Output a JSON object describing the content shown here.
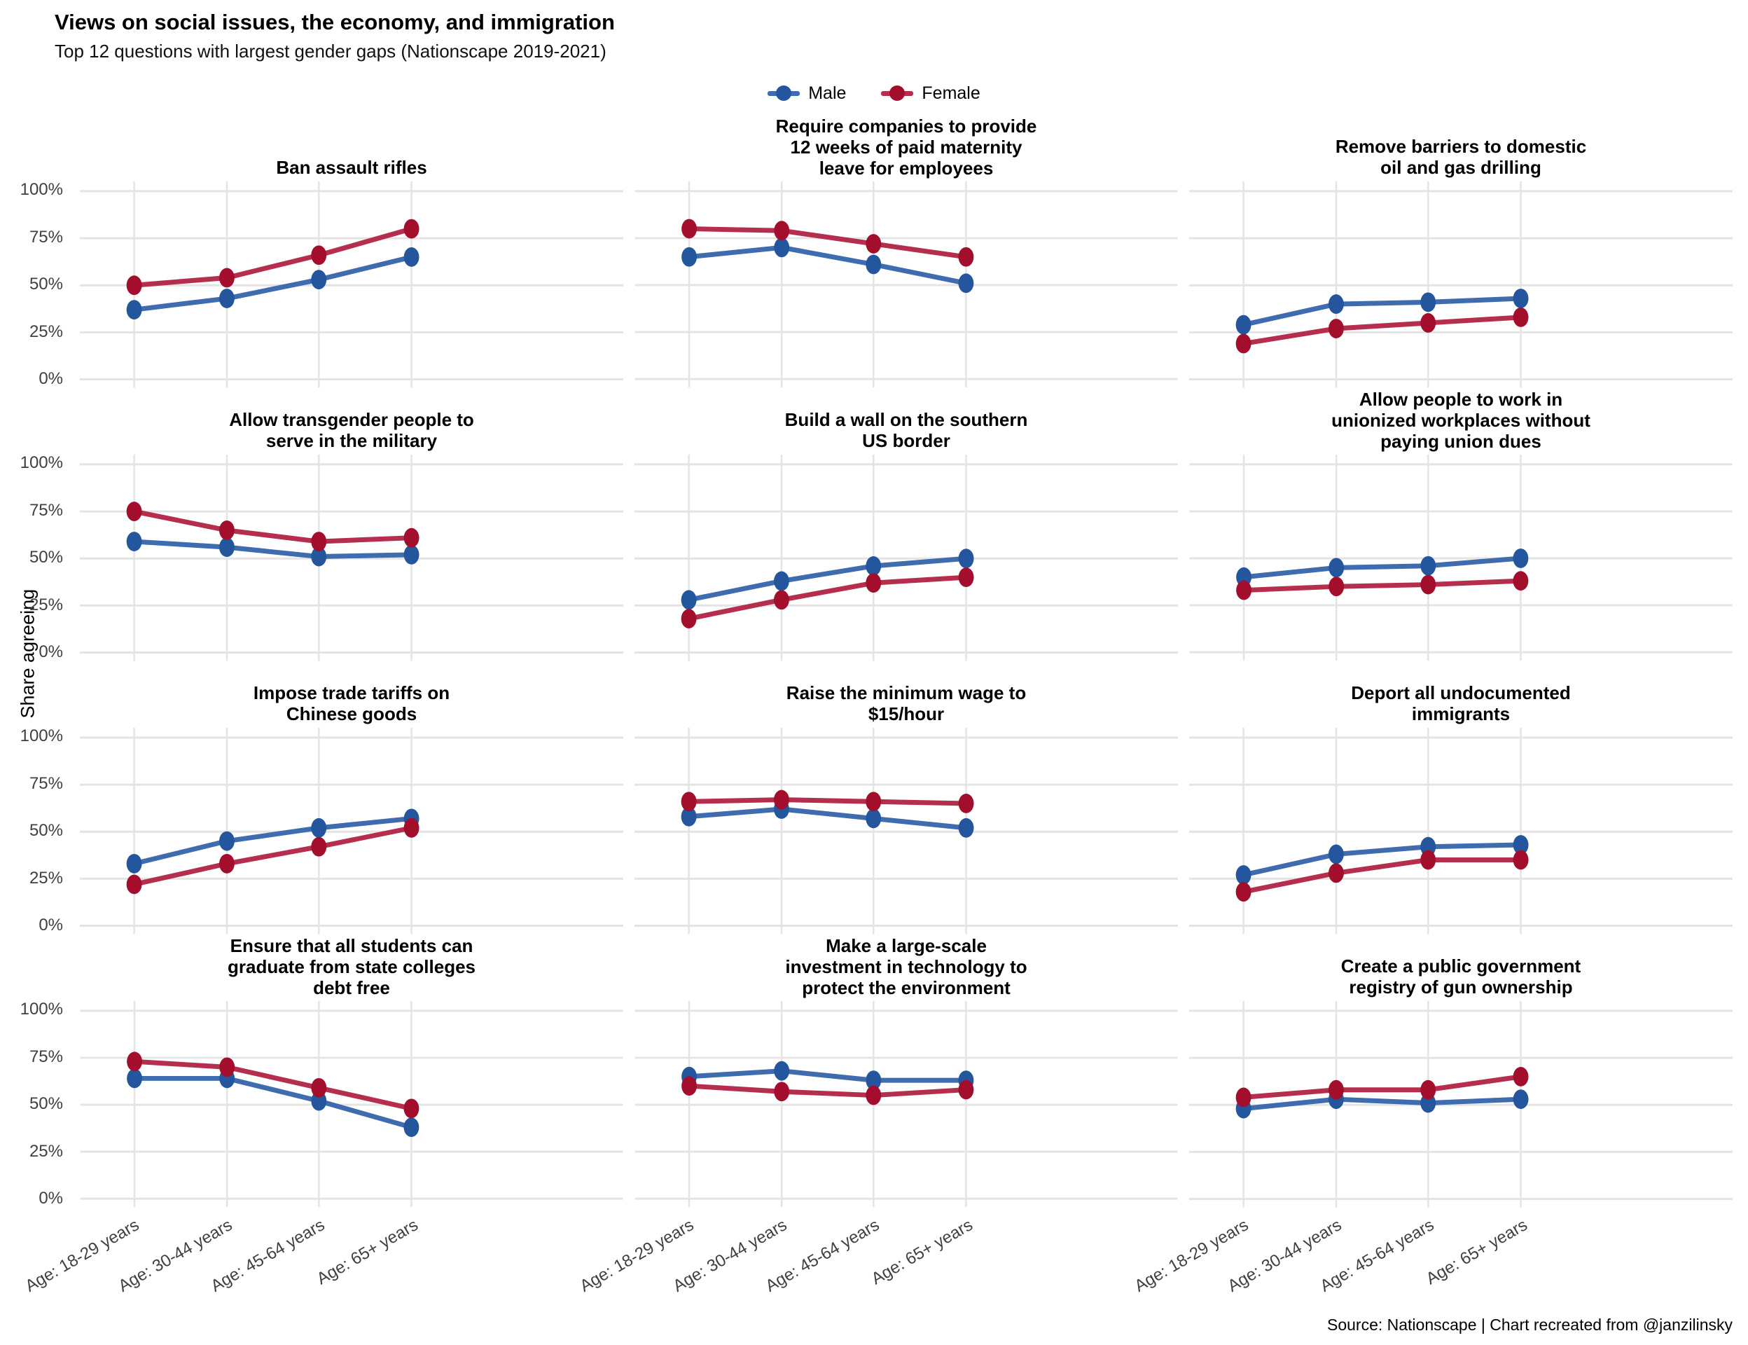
{
  "header": {
    "title": "Views on social issues, the economy, and immigration",
    "subtitle": "Top 12 questions with largest gender gaps (Nationscape 2019-2021)"
  },
  "legend": {
    "items": [
      {
        "label": "Male"
      },
      {
        "label": "Female"
      }
    ]
  },
  "axis": {
    "y_label": "Share agreeing",
    "y_ticks": [
      "100%",
      "75%",
      "50%",
      "25%",
      "0%"
    ],
    "y_tick_values": [
      100,
      75,
      50,
      25,
      0
    ],
    "x_categories": [
      "Age: 18-29 years",
      "Age: 30-44 years",
      "Age: 45-64 years",
      "Age: 65+ years"
    ]
  },
  "source": "Source: Nationscape | Chart recreated from @janzilinsky",
  "colors": {
    "male_line": "#3e6cae",
    "male_point": "#24569e",
    "female_line": "#b62e4e",
    "female_point": "#a30e2d",
    "grid": "#e4e4e4"
  },
  "chart_data": [
    {
      "type": "line",
      "title": "Ban assault rifles",
      "categories": [
        "Age: 18-29 years",
        "Age: 30-44 years",
        "Age: 45-64 years",
        "Age: 65+ years"
      ],
      "ylim": [
        0,
        100
      ],
      "series": [
        {
          "name": "Male",
          "values": [
            37,
            43,
            53,
            65
          ]
        },
        {
          "name": "Female",
          "values": [
            50,
            54,
            66,
            80
          ]
        }
      ]
    },
    {
      "type": "line",
      "title": "Require companies to provide\n12 weeks of paid maternity\nleave for employees",
      "categories": [
        "Age: 18-29 years",
        "Age: 30-44 years",
        "Age: 45-64 years",
        "Age: 65+ years"
      ],
      "ylim": [
        0,
        100
      ],
      "series": [
        {
          "name": "Male",
          "values": [
            65,
            70,
            61,
            51
          ]
        },
        {
          "name": "Female",
          "values": [
            80,
            79,
            72,
            65
          ]
        }
      ]
    },
    {
      "type": "line",
      "title": "Remove barriers to domestic\noil and gas drilling",
      "categories": [
        "Age: 18-29 years",
        "Age: 30-44 years",
        "Age: 45-64 years",
        "Age: 65+ years"
      ],
      "ylim": [
        0,
        100
      ],
      "series": [
        {
          "name": "Male",
          "values": [
            29,
            40,
            41,
            43
          ]
        },
        {
          "name": "Female",
          "values": [
            19,
            27,
            30,
            33
          ]
        }
      ]
    },
    {
      "type": "line",
      "title": "Allow transgender people to\nserve in the military",
      "categories": [
        "Age: 18-29 years",
        "Age: 30-44 years",
        "Age: 45-64 years",
        "Age: 65+ years"
      ],
      "ylim": [
        0,
        100
      ],
      "series": [
        {
          "name": "Male",
          "values": [
            59,
            56,
            51,
            52
          ]
        },
        {
          "name": "Female",
          "values": [
            75,
            65,
            59,
            61
          ]
        }
      ]
    },
    {
      "type": "line",
      "title": "Build a wall on the southern\nUS border",
      "categories": [
        "Age: 18-29 years",
        "Age: 30-44 years",
        "Age: 45-64 years",
        "Age: 65+ years"
      ],
      "ylim": [
        0,
        100
      ],
      "series": [
        {
          "name": "Male",
          "values": [
            28,
            38,
            46,
            50
          ]
        },
        {
          "name": "Female",
          "values": [
            18,
            28,
            37,
            40
          ]
        }
      ]
    },
    {
      "type": "line",
      "title": "Allow people to work in\nunionized workplaces without\npaying union dues",
      "categories": [
        "Age: 18-29 years",
        "Age: 30-44 years",
        "Age: 45-64 years",
        "Age: 65+ years"
      ],
      "ylim": [
        0,
        100
      ],
      "series": [
        {
          "name": "Male",
          "values": [
            40,
            45,
            46,
            50
          ]
        },
        {
          "name": "Female",
          "values": [
            33,
            35,
            36,
            38
          ]
        }
      ]
    },
    {
      "type": "line",
      "title": "Impose trade tariffs on\nChinese goods",
      "categories": [
        "Age: 18-29 years",
        "Age: 30-44 years",
        "Age: 45-64 years",
        "Age: 65+ years"
      ],
      "ylim": [
        0,
        100
      ],
      "series": [
        {
          "name": "Male",
          "values": [
            33,
            45,
            52,
            57
          ]
        },
        {
          "name": "Female",
          "values": [
            22,
            33,
            42,
            52
          ]
        }
      ]
    },
    {
      "type": "line",
      "title": "Raise the minimum wage to\n$15/hour",
      "categories": [
        "Age: 18-29 years",
        "Age: 30-44 years",
        "Age: 45-64 years",
        "Age: 65+ years"
      ],
      "ylim": [
        0,
        100
      ],
      "series": [
        {
          "name": "Male",
          "values": [
            58,
            62,
            57,
            52
          ]
        },
        {
          "name": "Female",
          "values": [
            66,
            67,
            66,
            65
          ]
        }
      ]
    },
    {
      "type": "line",
      "title": "Deport all undocumented\nimmigrants",
      "categories": [
        "Age: 18-29 years",
        "Age: 30-44 years",
        "Age: 45-64 years",
        "Age: 65+ years"
      ],
      "ylim": [
        0,
        100
      ],
      "series": [
        {
          "name": "Male",
          "values": [
            27,
            38,
            42,
            43
          ]
        },
        {
          "name": "Female",
          "values": [
            18,
            28,
            35,
            35
          ]
        }
      ]
    },
    {
      "type": "line",
      "title": "Ensure that all students can\ngraduate from state colleges\ndebt free",
      "categories": [
        "Age: 18-29 years",
        "Age: 30-44 years",
        "Age: 45-64 years",
        "Age: 65+ years"
      ],
      "ylim": [
        0,
        100
      ],
      "series": [
        {
          "name": "Male",
          "values": [
            64,
            64,
            52,
            38
          ]
        },
        {
          "name": "Female",
          "values": [
            73,
            70,
            59,
            48
          ]
        }
      ]
    },
    {
      "type": "line",
      "title": "Make a large-scale\ninvestment in technology to\nprotect the environment",
      "categories": [
        "Age: 18-29 years",
        "Age: 30-44 years",
        "Age: 45-64 years",
        "Age: 65+ years"
      ],
      "ylim": [
        0,
        100
      ],
      "series": [
        {
          "name": "Male",
          "values": [
            65,
            68,
            63,
            63
          ]
        },
        {
          "name": "Female",
          "values": [
            60,
            57,
            55,
            58
          ]
        }
      ]
    },
    {
      "type": "line",
      "title": "Create a public government\nregistry of gun ownership",
      "categories": [
        "Age: 18-29 years",
        "Age: 30-44 years",
        "Age: 45-64 years",
        "Age: 65+ years"
      ],
      "ylim": [
        0,
        100
      ],
      "series": [
        {
          "name": "Male",
          "values": [
            48,
            53,
            51,
            53
          ]
        },
        {
          "name": "Female",
          "values": [
            54,
            58,
            58,
            65
          ]
        }
      ]
    }
  ]
}
